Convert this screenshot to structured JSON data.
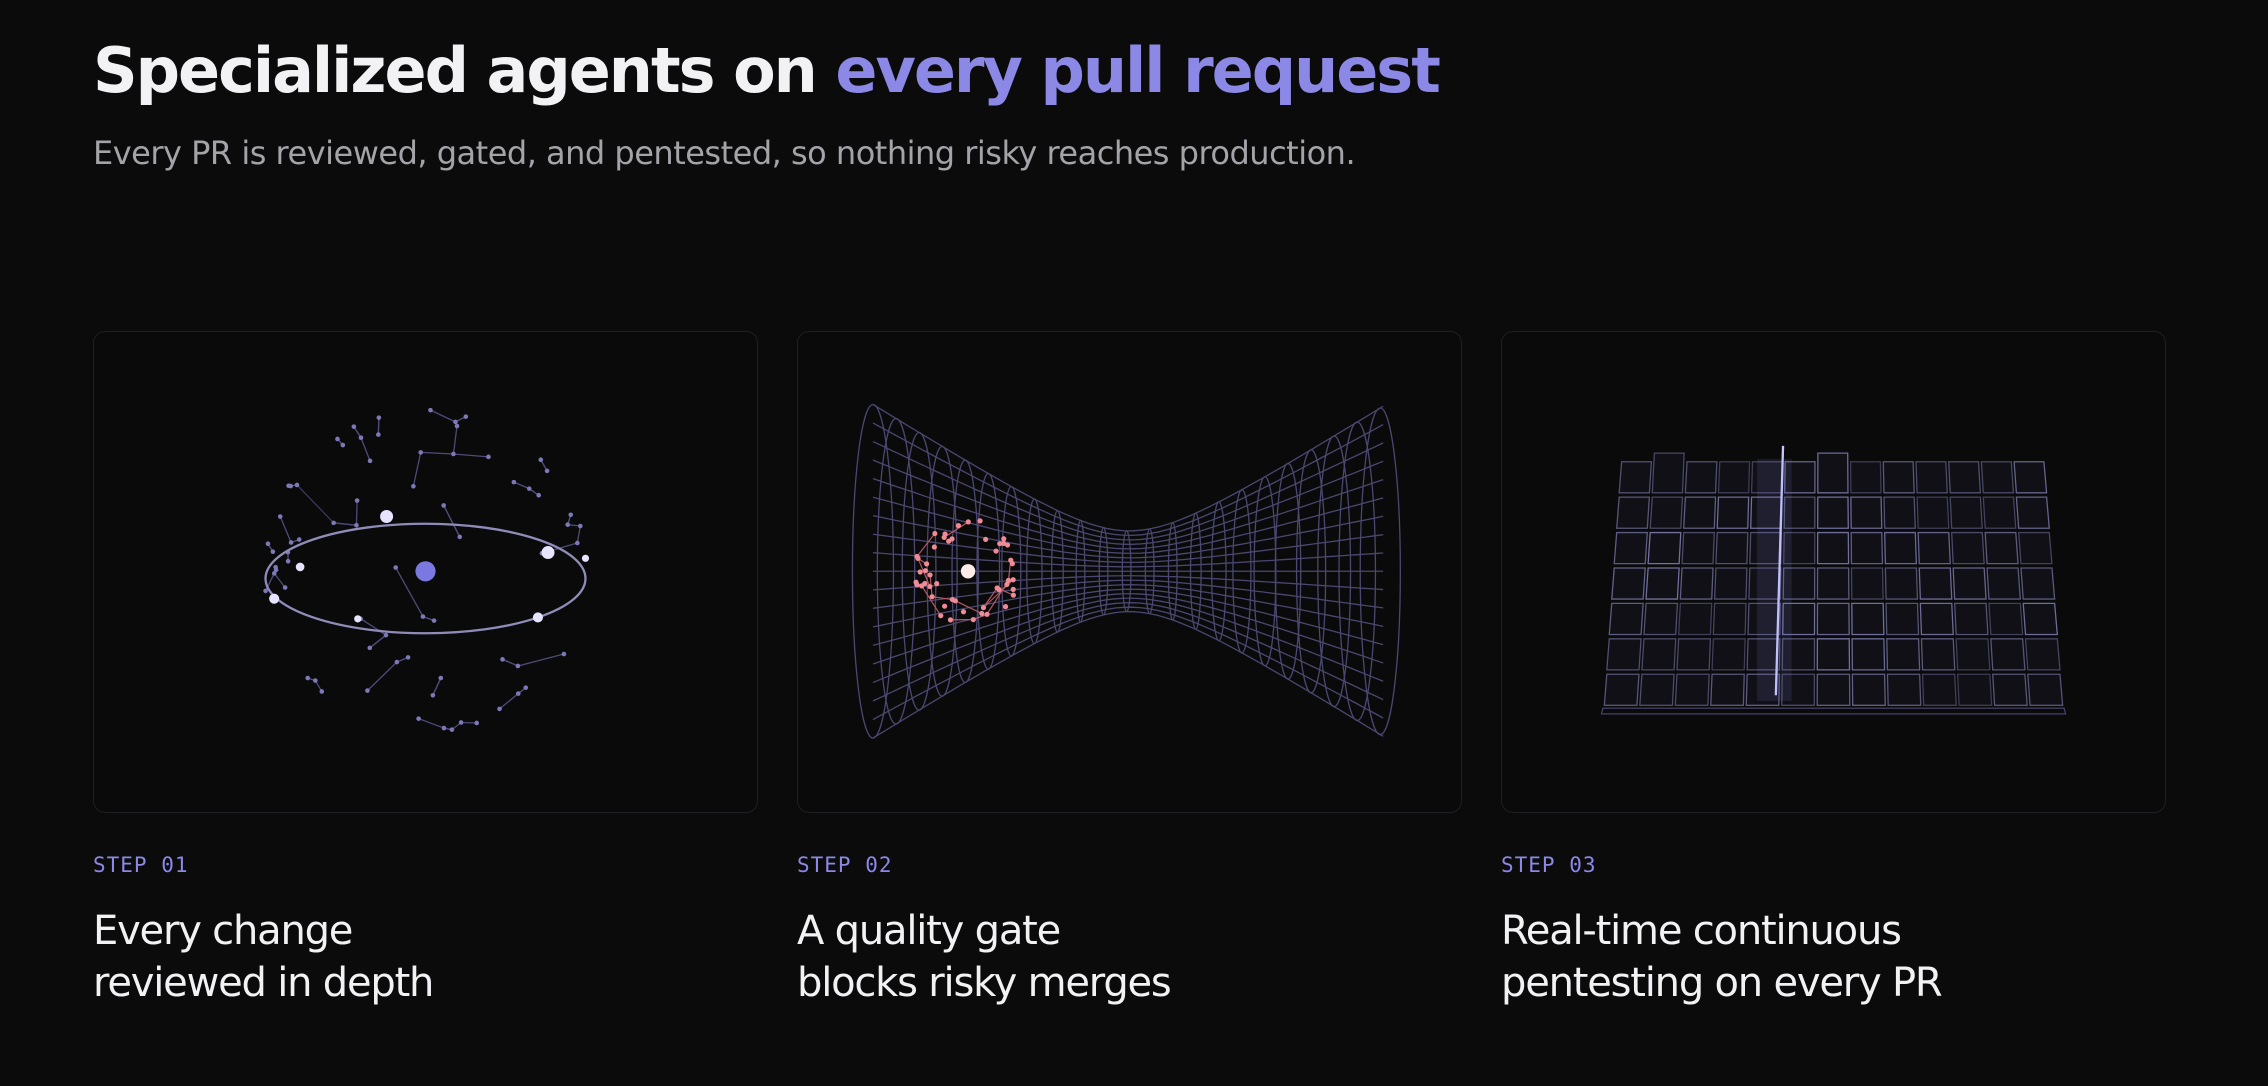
{
  "header": {
    "title_prefix": "Specialized agents on",
    "title_highlight": "every pull request",
    "subtitle": "Every PR is reviewed, gated, and pentested, so nothing risky reaches production."
  },
  "steps": [
    {
      "label": "STEP 01",
      "title_lines": [
        "Every change",
        "reviewed in depth"
      ]
    },
    {
      "label": "STEP 02",
      "title_lines": [
        "A quality gate",
        "blocks risky merges"
      ]
    },
    {
      "label": "STEP 03",
      "title_lines": [
        "Real-time continuous",
        "pentesting on every PR"
      ]
    }
  ]
}
